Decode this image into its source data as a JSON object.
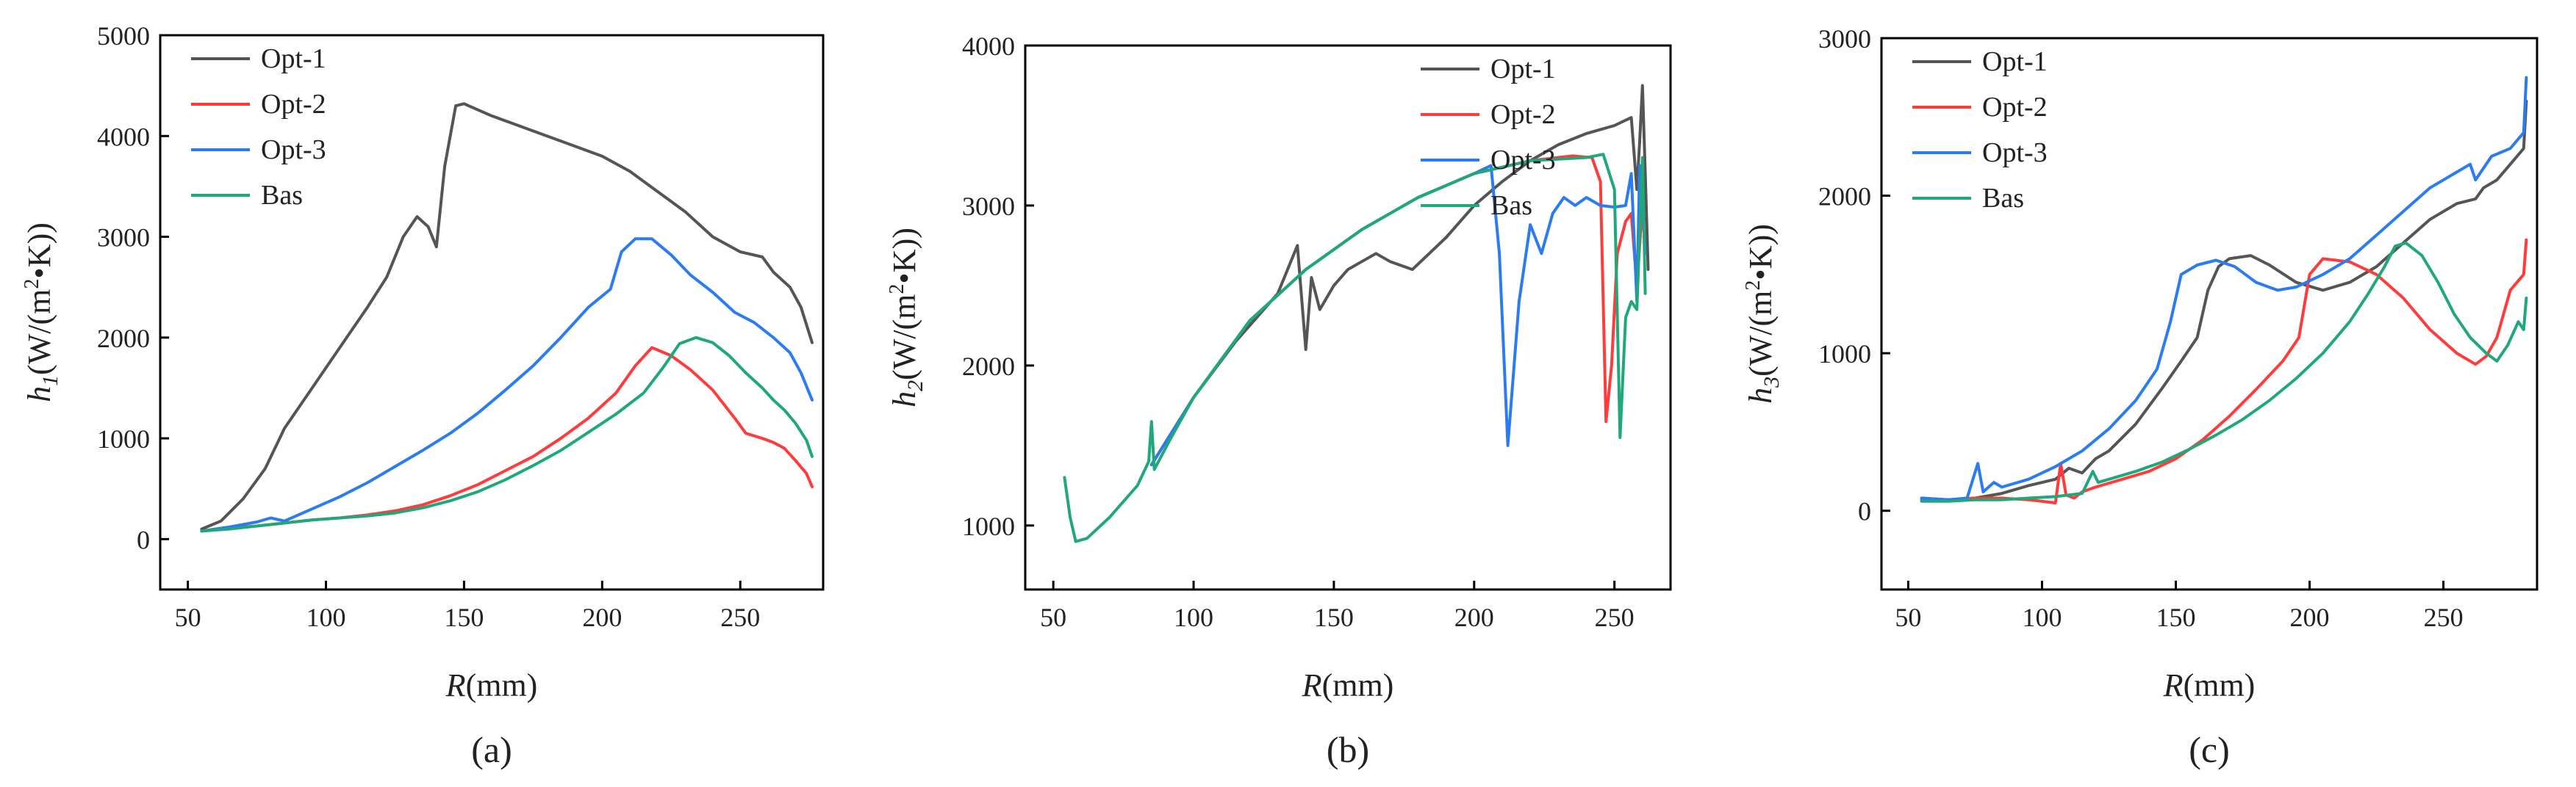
{
  "chart_data": [
    {
      "type": "line",
      "panel_label": "(a)",
      "xlabel": "R(mm)",
      "xlabel_var": "R",
      "xlabel_unit": "(mm)",
      "ylabel": "h1(W/(m2•K))",
      "ylabel_var": "h",
      "ylabel_sub": "1",
      "ylabel_unit_pre": "(W/(m",
      "ylabel_unit_sup": "2",
      "ylabel_unit_post": "•K))",
      "xlim": [
        40,
        280
      ],
      "ylim": [
        -500,
        5000
      ],
      "xticks": [
        50,
        100,
        150,
        200,
        250
      ],
      "yticks": [
        0,
        1000,
        2000,
        3000,
        4000,
        5000
      ],
      "legend": "top-left",
      "series": [
        {
          "name": "Opt-1",
          "color": "#555555",
          "x": [
            55,
            62,
            70,
            78,
            85,
            95,
            105,
            115,
            122,
            128,
            133,
            137,
            140,
            143,
            147,
            150,
            160,
            170,
            180,
            190,
            200,
            210,
            220,
            230,
            240,
            250,
            258,
            262,
            268,
            272,
            276
          ],
          "y": [
            100,
            180,
            400,
            700,
            1100,
            1500,
            1900,
            2300,
            2600,
            3000,
            3200,
            3100,
            2900,
            3700,
            4300,
            4320,
            4200,
            4100,
            4000,
            3900,
            3800,
            3650,
            3450,
            3250,
            3000,
            2850,
            2800,
            2650,
            2500,
            2300,
            1950
          ]
        },
        {
          "name": "Opt-2",
          "color": "#ff3b3b",
          "x": [
            55,
            65,
            75,
            85,
            95,
            105,
            115,
            125,
            135,
            145,
            155,
            165,
            175,
            185,
            195,
            205,
            212,
            218,
            225,
            232,
            240,
            248,
            252,
            258,
            262,
            266,
            270,
            274,
            276
          ],
          "y": [
            80,
            110,
            130,
            160,
            190,
            210,
            240,
            280,
            340,
            430,
            540,
            680,
            820,
            1000,
            1200,
            1450,
            1720,
            1900,
            1820,
            1680,
            1480,
            1200,
            1050,
            1000,
            960,
            900,
            780,
            650,
            520
          ]
        },
        {
          "name": "Opt-3",
          "color": "#2b7cf0",
          "x": [
            55,
            65,
            75,
            80,
            85,
            95,
            105,
            115,
            125,
            135,
            145,
            155,
            165,
            175,
            185,
            195,
            203,
            207,
            212,
            218,
            225,
            232,
            240,
            248,
            255,
            262,
            268,
            272,
            276
          ],
          "y": [
            80,
            120,
            170,
            210,
            180,
            300,
            420,
            560,
            720,
            880,
            1050,
            1250,
            1480,
            1720,
            2000,
            2300,
            2480,
            2850,
            2980,
            2980,
            2820,
            2620,
            2450,
            2250,
            2150,
            2000,
            1850,
            1650,
            1380
          ]
        },
        {
          "name": "Bas",
          "color": "#1fa87a",
          "x": [
            55,
            65,
            75,
            85,
            95,
            105,
            115,
            125,
            135,
            145,
            155,
            165,
            175,
            185,
            195,
            205,
            215,
            222,
            228,
            234,
            240,
            246,
            252,
            258,
            262,
            266,
            270,
            274,
            276
          ],
          "y": [
            80,
            100,
            130,
            160,
            190,
            210,
            230,
            260,
            310,
            380,
            470,
            590,
            730,
            880,
            1060,
            1240,
            1450,
            1700,
            1940,
            2000,
            1950,
            1820,
            1650,
            1500,
            1380,
            1280,
            1150,
            980,
            820
          ]
        }
      ]
    },
    {
      "type": "line",
      "panel_label": "(b)",
      "xlabel": "R(mm)",
      "xlabel_var": "R",
      "xlabel_unit": "(mm)",
      "ylabel": "h2(W/(m2•K))",
      "ylabel_var": "h",
      "ylabel_sub": "2",
      "ylabel_unit_pre": "(W/(m",
      "ylabel_unit_sup": "2",
      "ylabel_unit_post": "•K))",
      "xlim": [
        40,
        270
      ],
      "ylim": [
        600,
        4000
      ],
      "xticks": [
        50,
        100,
        150,
        200,
        250
      ],
      "yticks": [
        1000,
        2000,
        3000,
        4000
      ],
      "legend": "top-right",
      "series": [
        {
          "name": "Opt-1",
          "color": "#555555",
          "x": [
            85,
            100,
            115,
            130,
            137,
            140,
            142,
            145,
            150,
            155,
            160,
            165,
            170,
            178,
            190,
            200,
            210,
            220,
            230,
            240,
            250,
            256,
            258,
            259,
            260,
            261,
            262
          ],
          "y": [
            1380,
            1800,
            2150,
            2450,
            2750,
            2100,
            2550,
            2350,
            2500,
            2600,
            2650,
            2700,
            2650,
            2600,
            2800,
            3000,
            3150,
            3280,
            3380,
            3450,
            3500,
            3550,
            3100,
            3400,
            3750,
            3200,
            2600
          ]
        },
        {
          "name": "Opt-2",
          "color": "#ff3b3b",
          "x": [
            85,
            100,
            120,
            140,
            160,
            180,
            200,
            220,
            235,
            242,
            245,
            247,
            249,
            251,
            254,
            256,
            258,
            260
          ],
          "y": [
            1380,
            1800,
            2280,
            2600,
            2850,
            3050,
            3200,
            3280,
            3310,
            3300,
            3150,
            1650,
            2000,
            2700,
            2900,
            2950,
            2500,
            3000
          ]
        },
        {
          "name": "Opt-3",
          "color": "#2b7cf0",
          "x": [
            85,
            100,
            120,
            140,
            160,
            180,
            200,
            206,
            209,
            212,
            216,
            220,
            224,
            228,
            232,
            236,
            240,
            245,
            250,
            254,
            256,
            258,
            259,
            260,
            261
          ],
          "y": [
            1380,
            1800,
            2280,
            2600,
            2850,
            3050,
            3200,
            3250,
            2700,
            1500,
            2400,
            2880,
            2700,
            2950,
            3050,
            3000,
            3050,
            3000,
            2990,
            3000,
            3200,
            2400,
            3250,
            3000,
            2700
          ]
        },
        {
          "name": "Bas",
          "color": "#1fa87a",
          "x": [
            54,
            56,
            58,
            62,
            70,
            80,
            84,
            85,
            86,
            92,
            100,
            120,
            140,
            160,
            180,
            200,
            220,
            240,
            246,
            250,
            252,
            254,
            256,
            258,
            260,
            261
          ],
          "y": [
            1300,
            1050,
            900,
            920,
            1050,
            1250,
            1400,
            1650,
            1350,
            1550,
            1800,
            2280,
            2600,
            2850,
            3050,
            3200,
            3280,
            3300,
            3320,
            3100,
            1550,
            2300,
            2400,
            2350,
            3300,
            2450
          ]
        }
      ]
    },
    {
      "type": "line",
      "panel_label": "(c)",
      "xlabel": "R(mm)",
      "xlabel_var": "R",
      "xlabel_unit": "(mm)",
      "ylabel": "h3(W/(m2•K))",
      "ylabel_var": "h",
      "ylabel_sub": "3",
      "ylabel_unit_pre": "(W/(m",
      "ylabel_unit_sup": "2",
      "ylabel_unit_post": "•K))",
      "xlim": [
        40,
        285
      ],
      "ylim": [
        -500,
        3000
      ],
      "xticks": [
        50,
        100,
        150,
        200,
        250
      ],
      "yticks": [
        0,
        1000,
        2000,
        3000
      ],
      "legend": "top-left",
      "series": [
        {
          "name": "Opt-1",
          "color": "#555555",
          "x": [
            55,
            65,
            75,
            85,
            95,
            105,
            110,
            115,
            120,
            125,
            135,
            145,
            152,
            158,
            162,
            166,
            170,
            178,
            185,
            195,
            205,
            215,
            225,
            235,
            245,
            255,
            262,
            265,
            270,
            275,
            280,
            281
          ],
          "y": [
            80,
            70,
            80,
            110,
            160,
            200,
            270,
            240,
            330,
            380,
            550,
            780,
            950,
            1100,
            1400,
            1550,
            1600,
            1620,
            1560,
            1450,
            1400,
            1450,
            1550,
            1700,
            1850,
            1950,
            1980,
            2050,
            2100,
            2200,
            2300,
            2600
          ]
        },
        {
          "name": "Opt-2",
          "color": "#ff3b3b",
          "x": [
            55,
            65,
            75,
            85,
            95,
            105,
            107,
            109,
            112,
            115,
            120,
            130,
            140,
            150,
            160,
            170,
            180,
            190,
            196,
            200,
            205,
            215,
            225,
            235,
            245,
            255,
            262,
            266,
            270,
            275,
            280,
            281
          ],
          "y": [
            70,
            70,
            80,
            80,
            70,
            50,
            300,
            100,
            80,
            120,
            150,
            200,
            250,
            330,
            450,
            600,
            770,
            950,
            1100,
            1500,
            1600,
            1580,
            1500,
            1350,
            1150,
            1000,
            930,
            980,
            1100,
            1400,
            1500,
            1720
          ]
        },
        {
          "name": "Opt-3",
          "color": "#2b7cf0",
          "x": [
            55,
            65,
            72,
            76,
            78,
            82,
            85,
            95,
            105,
            115,
            125,
            135,
            143,
            148,
            152,
            158,
            165,
            172,
            180,
            188,
            195,
            205,
            215,
            225,
            235,
            245,
            255,
            260,
            262,
            268,
            275,
            280,
            281
          ],
          "y": [
            80,
            70,
            80,
            300,
            120,
            180,
            150,
            200,
            280,
            380,
            520,
            700,
            900,
            1200,
            1500,
            1560,
            1590,
            1550,
            1450,
            1400,
            1420,
            1500,
            1600,
            1750,
            1900,
            2050,
            2150,
            2200,
            2100,
            2250,
            2300,
            2400,
            2750
          ]
        },
        {
          "name": "Bas",
          "color": "#1fa87a",
          "x": [
            55,
            65,
            75,
            85,
            95,
            105,
            115,
            119,
            121,
            125,
            135,
            145,
            155,
            165,
            175,
            185,
            195,
            205,
            215,
            222,
            228,
            232,
            236,
            242,
            248,
            254,
            260,
            266,
            270,
            274,
            278,
            280,
            281
          ],
          "y": [
            60,
            60,
            70,
            70,
            80,
            90,
            110,
            250,
            180,
            200,
            250,
            310,
            390,
            480,
            580,
            700,
            840,
            1000,
            1200,
            1380,
            1550,
            1680,
            1700,
            1620,
            1450,
            1250,
            1100,
            1000,
            950,
            1050,
            1200,
            1150,
            1350
          ]
        }
      ]
    }
  ]
}
